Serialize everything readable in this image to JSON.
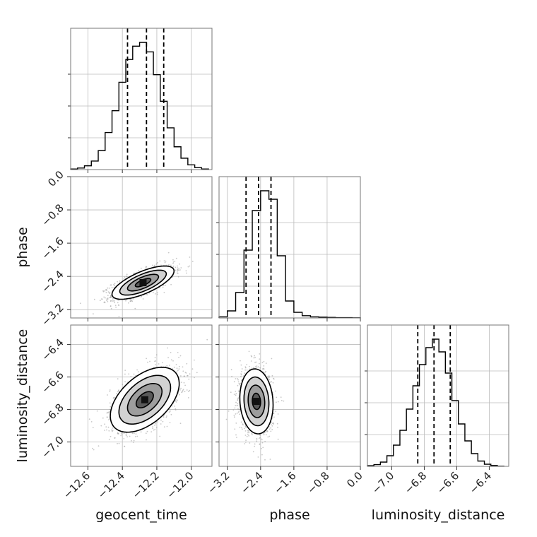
{
  "chart_data": {
    "type": "corner",
    "parameters": [
      "geocent_time",
      "phase",
      "luminosity_distance"
    ],
    "axis_labels": {
      "x": [
        "geocent_time",
        "phase",
        "luminosity_distance"
      ],
      "y": [
        "phase",
        "luminosity_distance"
      ]
    },
    "ranges": {
      "geocent_time": [
        -12.7,
        -11.88
      ],
      "phase": [
        -3.4,
        0.0
      ],
      "luminosity_distance": [
        -7.15,
        -6.28
      ]
    },
    "ticks": {
      "geocent_time": [
        -12.6,
        -12.4,
        -12.2,
        -12.0
      ],
      "phase": [
        -3.2,
        -2.4,
        -1.6,
        -0.8,
        0.0
      ],
      "luminosity_distance": [
        -7.0,
        -6.8,
        -6.6,
        -6.4
      ]
    },
    "tick_labels": {
      "geocent_time": [
        "−12.6",
        "−12.4",
        "−12.2",
        "−12.0"
      ],
      "phase": [
        "−3.2",
        "−2.4",
        "−1.6",
        "−0.8",
        "0.0"
      ],
      "luminosity_distance": [
        "−7.0",
        "−6.8",
        "−6.6",
        "−6.4"
      ]
    },
    "quantiles": {
      "geocent_time": [
        -12.37,
        -12.26,
        -12.16
      ],
      "phase": [
        -2.75,
        -2.45,
        -2.15
      ],
      "luminosity_distance": [
        -6.84,
        -6.74,
        -6.64
      ]
    },
    "histograms": {
      "geocent_time": {
        "edges": [
          -12.7,
          -12.66,
          -12.62,
          -12.58,
          -12.54,
          -12.5,
          -12.46,
          -12.42,
          -12.38,
          -12.34,
          -12.3,
          -12.26,
          -12.22,
          -12.18,
          -12.14,
          -12.1,
          -12.06,
          -12.02,
          -11.98,
          -11.94,
          -11.9
        ],
        "counts": [
          0.3,
          0.8,
          2.0,
          4.5,
          10.0,
          19.5,
          31.0,
          46.0,
          58.0,
          65.0,
          67.0,
          62.0,
          50.0,
          36.0,
          22.0,
          12.0,
          6.0,
          2.5,
          1.0,
          0.3
        ]
      },
      "phase": {
        "edges": [
          -3.4,
          -3.2,
          -3.0,
          -2.8,
          -2.6,
          -2.4,
          -2.2,
          -2.0,
          -1.8,
          -1.6,
          -1.4,
          -1.2,
          -1.0,
          -0.8,
          -0.6,
          -0.4,
          -0.2,
          0.0
        ],
        "counts": [
          0.4,
          2.5,
          9.0,
          24.0,
          38.0,
          45.0,
          42.0,
          22.0,
          6.0,
          2.0,
          0.8,
          0.4,
          0.3,
          0.2,
          0.1,
          0.1,
          0.05
        ]
      },
      "luminosity_distance": {
        "edges": [
          -7.15,
          -7.11,
          -7.07,
          -7.03,
          -6.99,
          -6.95,
          -6.91,
          -6.87,
          -6.83,
          -6.79,
          -6.75,
          -6.71,
          -6.67,
          -6.63,
          -6.59,
          -6.55,
          -6.51,
          -6.47,
          -6.43,
          -6.39,
          -6.35,
          -6.31
        ],
        "counts": [
          0.3,
          0.8,
          2.0,
          5.0,
          10.0,
          17.0,
          27.0,
          38.0,
          48.0,
          56.0,
          60.0,
          54.0,
          44.0,
          31.0,
          20.0,
          12.0,
          6.0,
          2.5,
          1.0,
          0.4,
          0.1
        ]
      }
    },
    "pairs": [
      {
        "x": "geocent_time",
        "y": "phase",
        "mean": [
          -12.28,
          -2.55
        ],
        "std": [
          0.09,
          0.2
        ],
        "rho": 0.7
      },
      {
        "x": "geocent_time",
        "y": "luminosity_distance",
        "mean": [
          -12.27,
          -6.74
        ],
        "std": [
          0.1,
          0.1
        ],
        "rho": 0.5
      },
      {
        "x": "phase",
        "y": "luminosity_distance",
        "mean": [
          -2.5,
          -6.75
        ],
        "std": [
          0.2,
          0.1
        ],
        "rho": -0.1
      }
    ],
    "contour_levels_sigma": [
      0.5,
      1.0,
      1.5,
      2.0
    ],
    "grid": true,
    "colors": {
      "line": "#000000",
      "points": "#9a9a9a",
      "grid": "#bbbbbb",
      "frame": "#777777"
    }
  }
}
